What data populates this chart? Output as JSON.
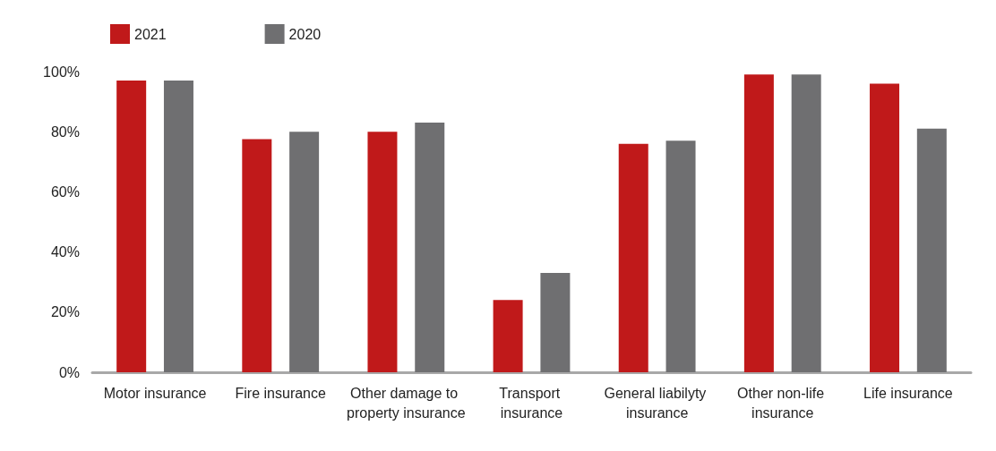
{
  "chart_data": {
    "type": "bar",
    "categories": [
      "Motor insurance",
      "Fire insurance",
      "Other damage to property insurance",
      "Transport insurance",
      "General liabilyty insurance",
      "Other non-life insurance",
      "Life insurance"
    ],
    "series": [
      {
        "name": "2021",
        "color": "#c0191a",
        "values": [
          97,
          77.5,
          80,
          24,
          76,
          99,
          96
        ]
      },
      {
        "name": "2020",
        "color": "#6f6f71",
        "values": [
          97,
          80,
          83,
          33,
          77,
          99,
          81
        ]
      }
    ],
    "ylim": [
      0,
      100
    ],
    "yticks": [
      {
        "value": 0,
        "label": "0%"
      },
      {
        "value": 20,
        "label": "20%"
      },
      {
        "value": 40,
        "label": "40%"
      },
      {
        "value": 60,
        "label": "60%"
      },
      {
        "value": 80,
        "label": "80%"
      },
      {
        "value": 100,
        "label": "100%"
      }
    ],
    "grid": false,
    "legend": "top left"
  }
}
